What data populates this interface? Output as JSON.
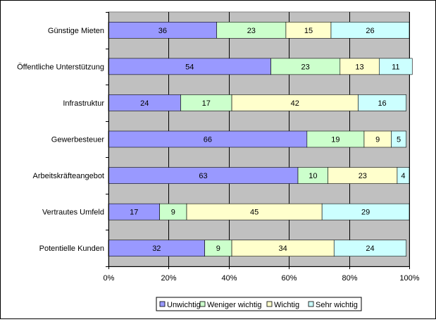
{
  "chart_data": {
    "type": "bar",
    "orientation": "horizontal",
    "stacked": "percent",
    "categories": [
      "Günstige Mieten",
      "Öffentliche Unterstützung",
      "Infrastruktur",
      "Gewerbesteuer",
      "Arbeitskräfteangebot",
      "Vertrautes Umfeld",
      "Potentielle Kunden"
    ],
    "series": [
      {
        "name": "Unwichtig",
        "color": "#9999FF",
        "values": [
          36,
          54,
          24,
          66,
          63,
          17,
          32
        ]
      },
      {
        "name": "Weniger wichtig",
        "color": "#CCFFCC",
        "values": [
          23,
          23,
          17,
          19,
          10,
          9,
          9
        ]
      },
      {
        "name": "Wichtig",
        "color": "#FFFFCC",
        "values": [
          15,
          13,
          42,
          9,
          23,
          45,
          34
        ]
      },
      {
        "name": "Sehr wichtig",
        "color": "#CCFFFF",
        "values": [
          26,
          11,
          16,
          5,
          4,
          29,
          24
        ]
      }
    ],
    "x_tick_labels": [
      "0%",
      "20%",
      "40%",
      "60%",
      "80%",
      "100%"
    ],
    "xlim": [
      0,
      100
    ],
    "grid": true,
    "plot_background": "#C0C0C0",
    "legend_position": "bottom"
  }
}
